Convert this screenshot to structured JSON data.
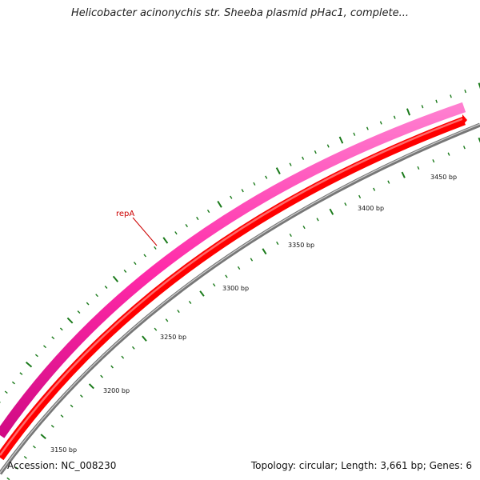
{
  "title": "Helicobacter acinonychis str. Sheeba plasmid pHac1, complete...",
  "footer": {
    "accession": "Accession: NC_008230",
    "summary": "Topology: circular; Length: 3,661 bp; Genes: 6"
  },
  "plasmid": {
    "length_bp": 3661,
    "visible_range_bp": [
      3130,
      3480
    ]
  },
  "genes": [
    {
      "name": "repA",
      "strand": "forward",
      "color": "#ff0000"
    }
  ],
  "colors": {
    "outer_band": "#ff2aa8",
    "gene_band": "#ff0000",
    "backbone": "#8a8a8a",
    "ticks": "#1a7a1a",
    "gene_label": "#cc0000"
  },
  "ticks": {
    "minor_step_bp": 10,
    "major_step_bp": 50,
    "labels": [
      "3150 bp",
      "3200 bp",
      "3250 bp",
      "3300 bp",
      "3350 bp",
      "3400 bp",
      "3450 bp"
    ]
  }
}
